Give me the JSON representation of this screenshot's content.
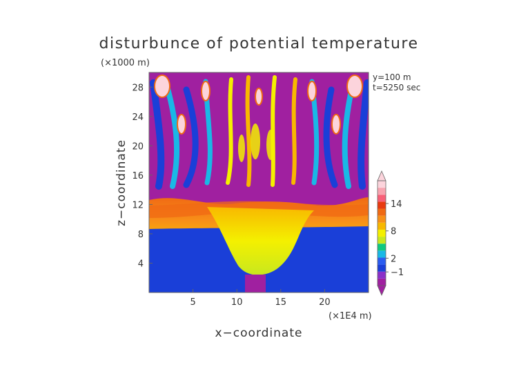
{
  "chart_data": {
    "type": "heatmap",
    "title": "disturbunce of potential temperature",
    "xlabel": "x−coordinate",
    "ylabel": "z−coordinate",
    "x_unit_label": "(×1E4 m)",
    "y_unit_label": "(×1000 m)",
    "annotations": [
      "y=100 m",
      "t=5250 sec"
    ],
    "xlim": [
      0,
      25
    ],
    "ylim": [
      0,
      30
    ],
    "x_ticks": [
      5,
      10,
      15,
      20
    ],
    "y_ticks": [
      4,
      8,
      12,
      16,
      20,
      24,
      28
    ],
    "colorbar": {
      "tick_labels": [
        "−1",
        "2",
        "8",
        "14"
      ],
      "tick_values": [
        -1,
        2,
        8,
        14
      ],
      "range": [
        -4,
        19
      ],
      "colors": [
        "#a020a0",
        "#8a30c8",
        "#1a3fd8",
        "#2a5cf0",
        "#19b8e6",
        "#10c880",
        "#c8e81e",
        "#f4f000",
        "#f8b800",
        "#f89018",
        "#f06a14",
        "#e83a10",
        "#f86078",
        "#f8a4b0",
        "#fcd4dc"
      ]
    }
  }
}
